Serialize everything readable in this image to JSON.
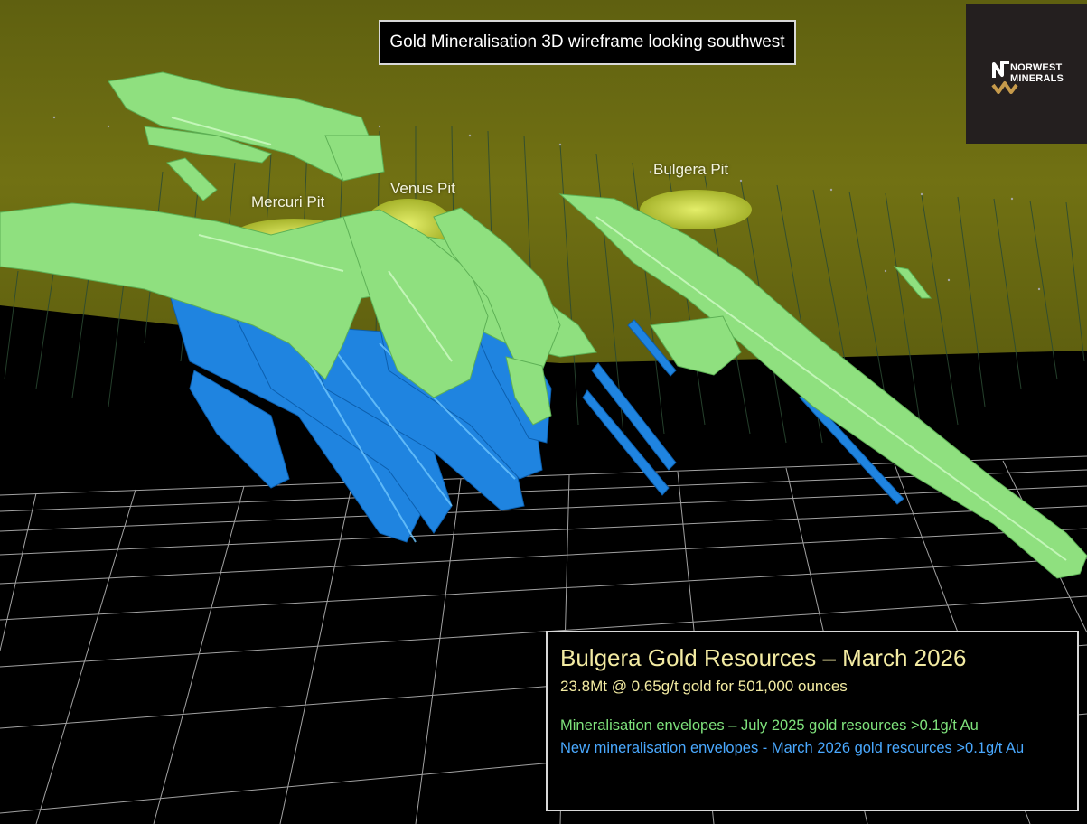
{
  "title": "Gold Mineralisation 3D wireframe looking southwest",
  "logo": {
    "line1": "NORWEST",
    "line2": "MINERALS"
  },
  "pits": {
    "mercuri": "Mercuri Pit",
    "venus": "Venus Pit",
    "bulgera": "Bulgera Pit"
  },
  "info": {
    "title": "Bulgera Gold Resources – March 2026",
    "resource": "23.8Mt @ 0.65g/t gold for 501,000 ounces",
    "legend_green": "Mineralisation envelopes – July 2025 gold resources >0.1g/t Au",
    "legend_blue": "New mineralisation envelopes - March 2026 gold resources >0.1g/t Au"
  },
  "colors": {
    "surface": "#6b6a12",
    "old_envelopes": "#8fe07f",
    "new_envelopes": "#1f84e0",
    "pit": "#c8d64a",
    "grid": "#ffffff",
    "title_text": "#f3eba2"
  }
}
